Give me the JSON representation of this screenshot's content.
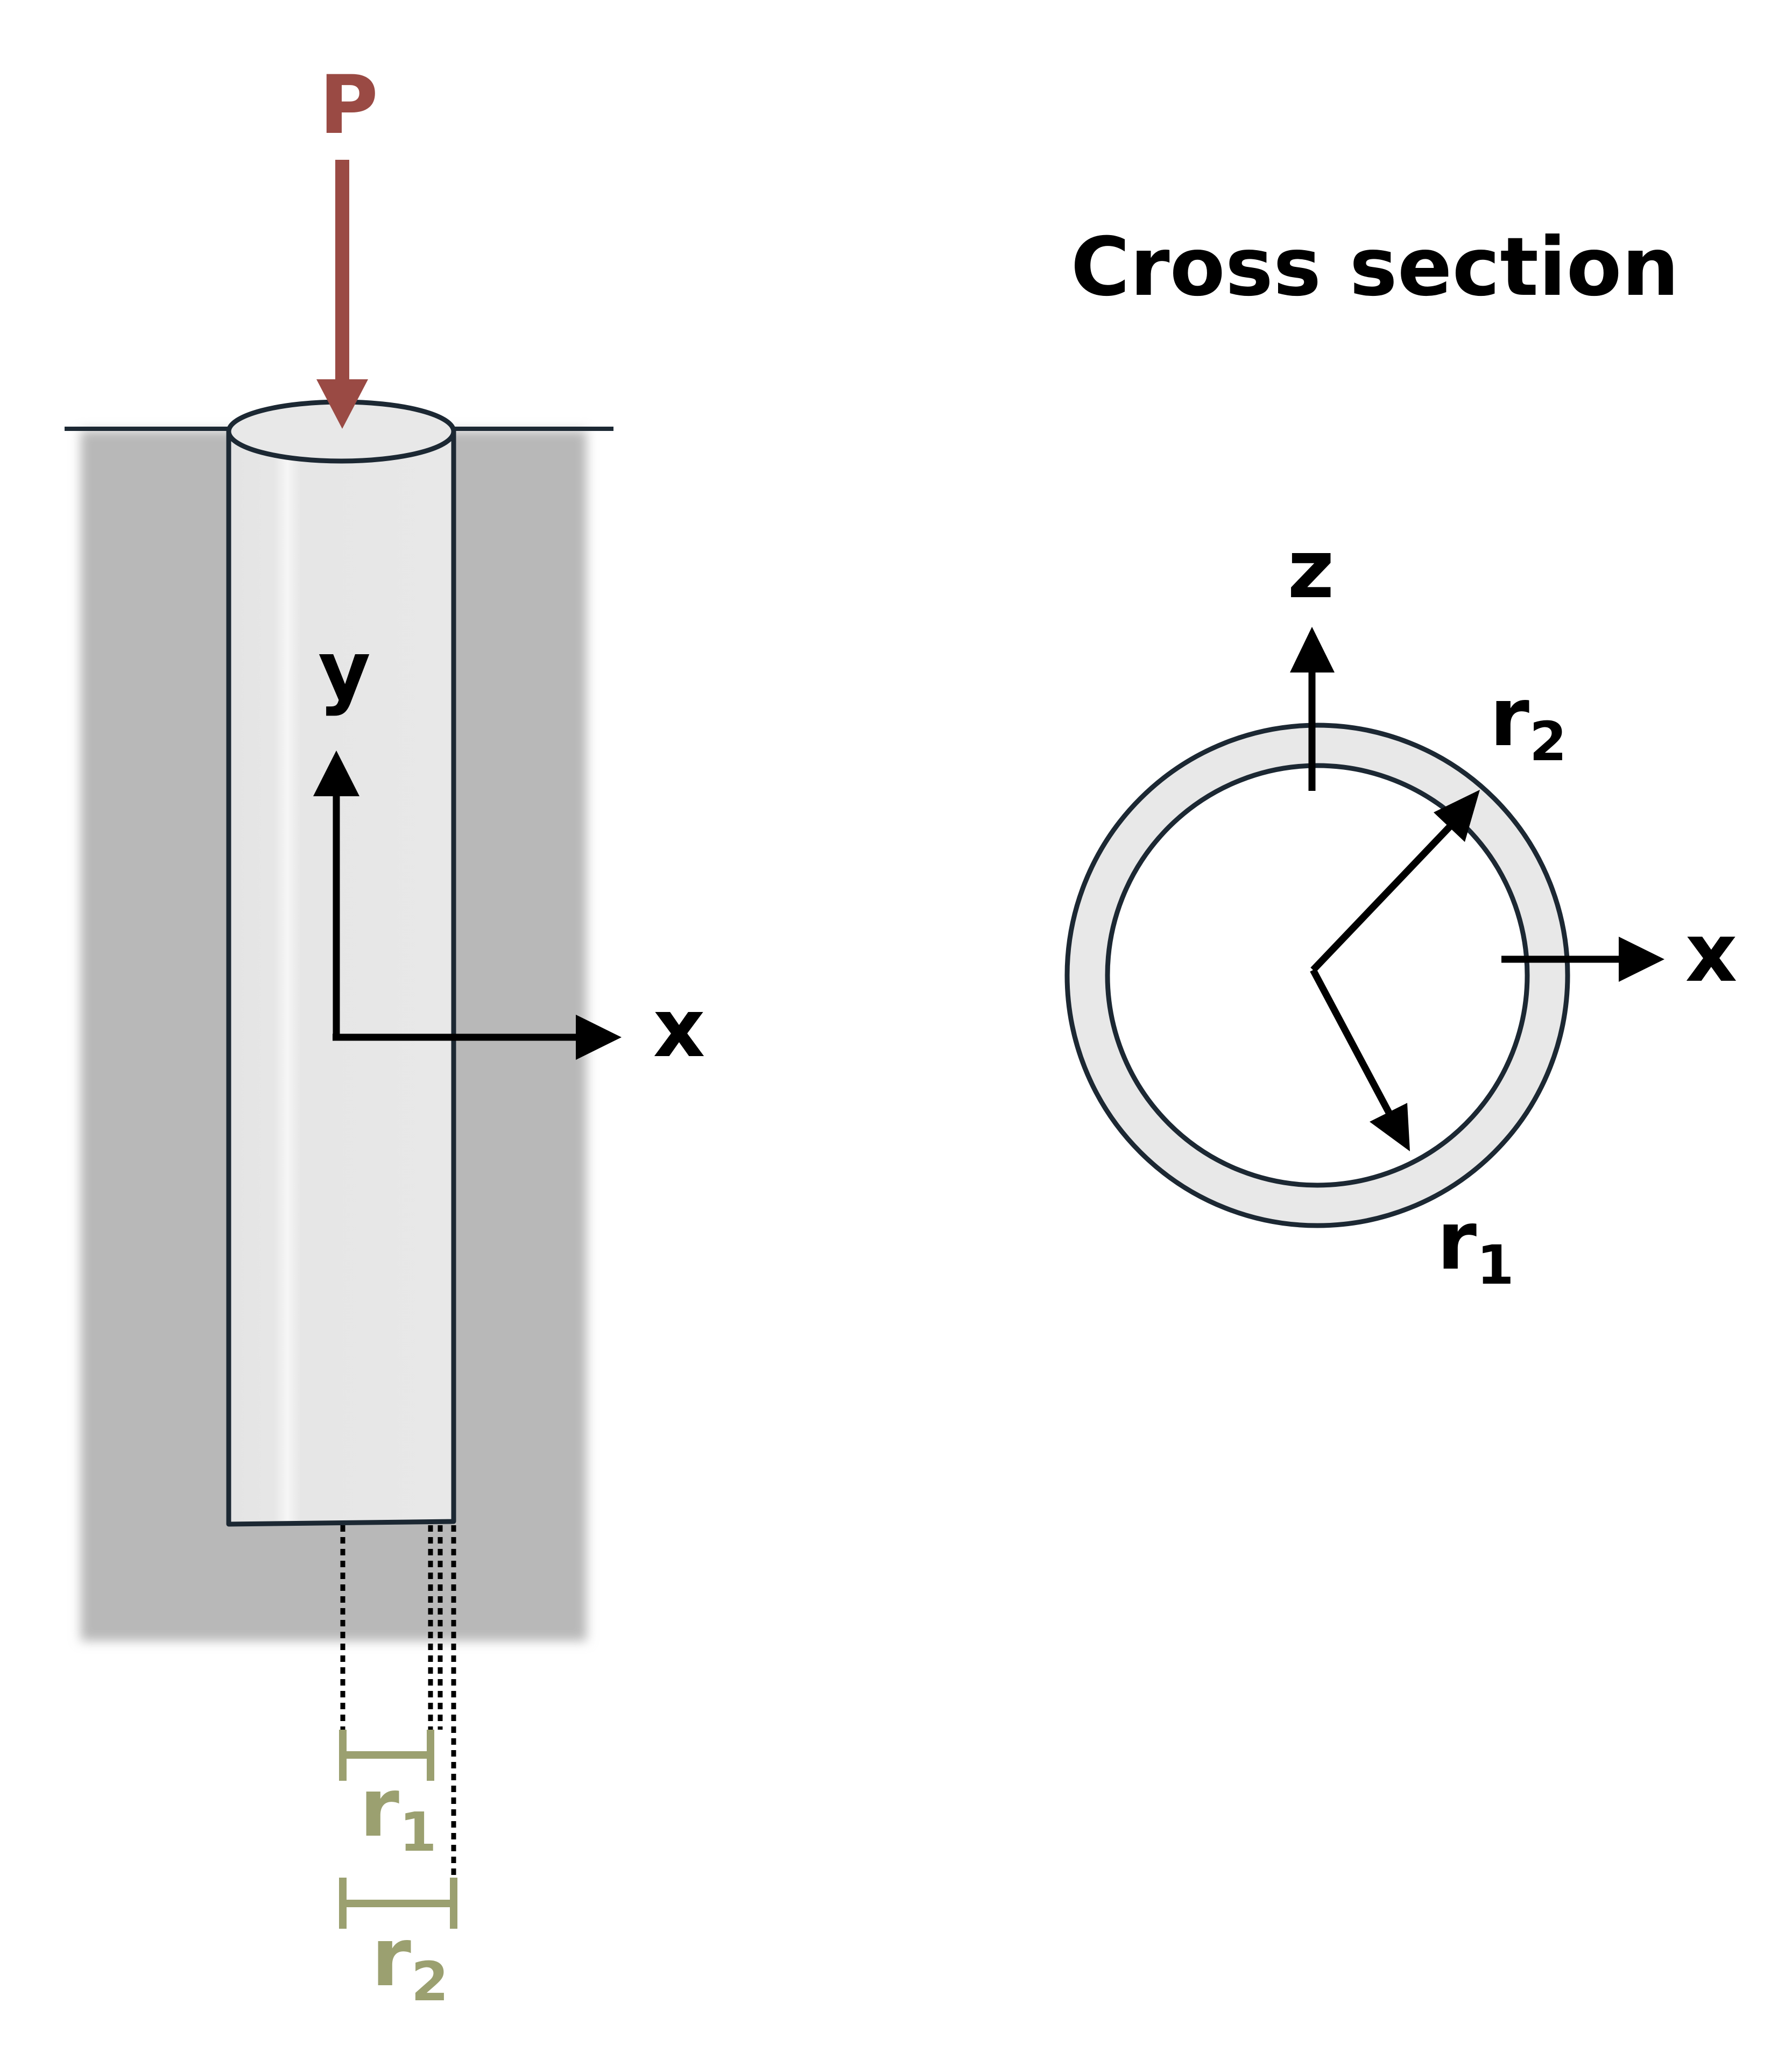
{
  "load": {
    "label": "P",
    "color": "#9a4a44"
  },
  "side_view": {
    "axis_y": "y",
    "axis_x": "x",
    "dim_inner": {
      "base": "r",
      "sub": "1"
    },
    "dim_outer": {
      "base": "r",
      "sub": "2"
    },
    "dim_color": "#9ba070",
    "ground_color": "#b8b8b8",
    "tube_color": "#e8e8e8",
    "outline_color": "#1c2833"
  },
  "cross_section": {
    "title": "Cross section",
    "axis_z": "z",
    "axis_x": "x",
    "outer_radius_label": {
      "base": "r",
      "sub": "2"
    },
    "inner_radius_label": {
      "base": "r",
      "sub": "1"
    },
    "ring_color": "#e8e8e8"
  }
}
